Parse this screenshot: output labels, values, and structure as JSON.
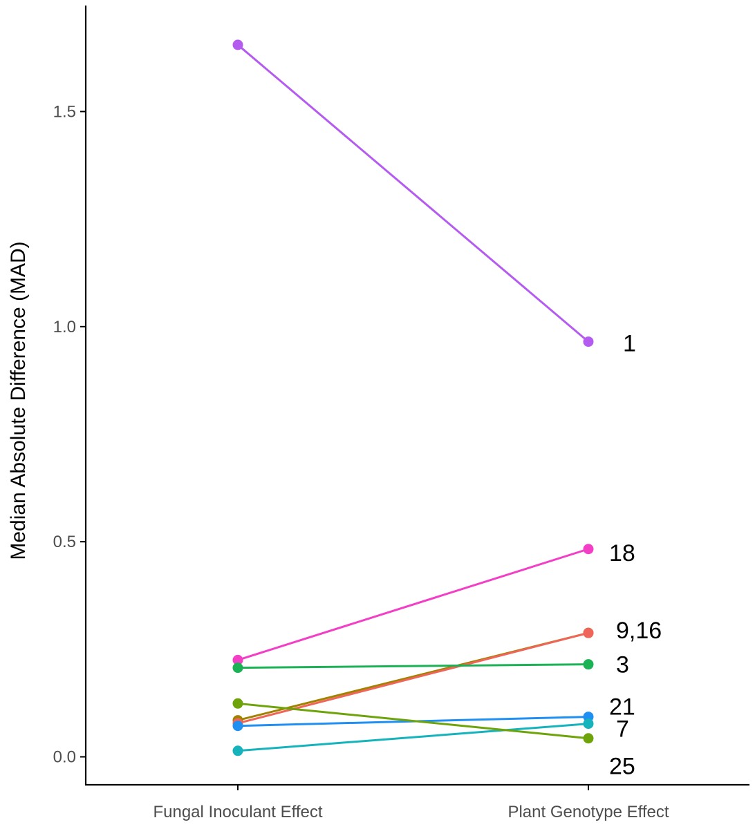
{
  "chart_data": {
    "type": "line",
    "title": "",
    "xlabel": "",
    "ylabel": "Median Absolute Difference (MAD)",
    "categories": [
      "Fungal Inoculant Effect",
      "Plant Genotype Effect"
    ],
    "ylim": [
      -0.065,
      1.74
    ],
    "yticks": [
      {
        "value": 0.0,
        "label": "0.0"
      },
      {
        "value": 0.5,
        "label": "0.5"
      },
      {
        "value": 1.0,
        "label": "1.0"
      },
      {
        "value": 1.5,
        "label": "1.5"
      }
    ],
    "grid": false,
    "legend": "none",
    "series": [
      {
        "name": "1",
        "label": "1",
        "color": "#b55cf0",
        "values": [
          1.655,
          0.965
        ]
      },
      {
        "name": "18",
        "label": "18",
        "color": "#f23fc6",
        "values": [
          0.225,
          0.483
        ]
      },
      {
        "name": "9",
        "label": "",
        "color": "#a08200",
        "values": [
          0.085,
          0.288
        ]
      },
      {
        "name": "16",
        "label": "9,16",
        "color": "#f0655a",
        "values": [
          0.078,
          0.288
        ]
      },
      {
        "name": "3",
        "label": "3",
        "color": "#1ab255",
        "values": [
          0.207,
          0.215
        ]
      },
      {
        "name": "21",
        "label": "21",
        "color": "#1f8ff2",
        "values": [
          0.072,
          0.093
        ]
      },
      {
        "name": "7",
        "label": "7",
        "color": "#15b3bc",
        "values": [
          0.014,
          0.077
        ]
      },
      {
        "name": "25",
        "label": "25",
        "color": "#6ea30a",
        "values": [
          0.124,
          0.043
        ]
      }
    ]
  }
}
